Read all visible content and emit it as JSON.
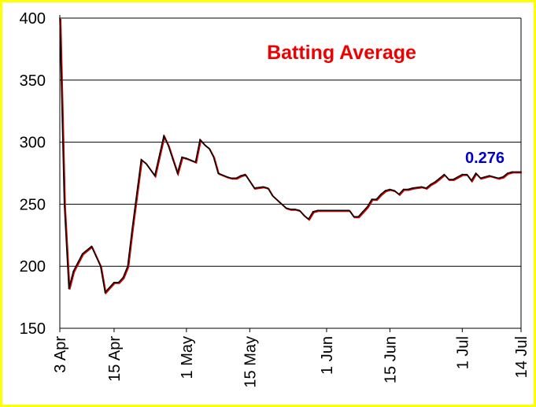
{
  "chart_data": {
    "type": "line",
    "title": "Batting Average",
    "xlabel": "",
    "ylabel": "",
    "ylim": [
      150,
      400
    ],
    "y_ticks": [
      150,
      200,
      250,
      300,
      350,
      400
    ],
    "grid": true,
    "x_range": [
      "2024-04-03",
      "2024-07-14"
    ],
    "x_ticks": [
      {
        "date": "2024-04-03",
        "label": "3 Apr"
      },
      {
        "date": "2024-04-15",
        "label": "15 Apr"
      },
      {
        "date": "2024-05-01",
        "label": "1 May"
      },
      {
        "date": "2024-05-15",
        "label": "15 May"
      },
      {
        "date": "2024-06-01",
        "label": "1 Jun"
      },
      {
        "date": "2024-06-15",
        "label": "15 Jun"
      },
      {
        "date": "2024-07-01",
        "label": "1 Jul"
      },
      {
        "date": "2024-07-14",
        "label": "14 Jul"
      }
    ],
    "series": [
      {
        "color": "#000000",
        "shadow_color": "#cc0000",
        "points": [
          [
            "2024-04-03",
            400
          ],
          [
            "2024-04-04",
            250
          ],
          [
            "2024-04-05",
            182
          ],
          [
            "2024-04-06",
            196
          ],
          [
            "2024-04-08",
            210
          ],
          [
            "2024-04-10",
            216
          ],
          [
            "2024-04-12",
            200
          ],
          [
            "2024-04-13",
            179
          ],
          [
            "2024-04-14",
            183
          ],
          [
            "2024-04-15",
            187
          ],
          [
            "2024-04-16",
            187
          ],
          [
            "2024-04-17",
            191
          ],
          [
            "2024-04-18",
            200
          ],
          [
            "2024-04-19",
            230
          ],
          [
            "2024-04-21",
            286
          ],
          [
            "2024-04-22",
            283
          ],
          [
            "2024-04-24",
            273
          ],
          [
            "2024-04-26",
            305
          ],
          [
            "2024-04-27",
            297
          ],
          [
            "2024-04-28",
            286
          ],
          [
            "2024-04-29",
            275
          ],
          [
            "2024-04-30",
            288
          ],
          [
            "2024-05-01",
            287
          ],
          [
            "2024-05-03",
            284
          ],
          [
            "2024-05-04",
            302
          ],
          [
            "2024-05-05",
            298
          ],
          [
            "2024-05-06",
            295
          ],
          [
            "2024-05-07",
            288
          ],
          [
            "2024-05-08",
            275
          ],
          [
            "2024-05-10",
            272
          ],
          [
            "2024-05-11",
            271
          ],
          [
            "2024-05-12",
            271
          ],
          [
            "2024-05-13",
            273
          ],
          [
            "2024-05-14",
            274
          ],
          [
            "2024-05-16",
            263
          ],
          [
            "2024-05-18",
            264
          ],
          [
            "2024-05-19",
            263
          ],
          [
            "2024-05-20",
            257
          ],
          [
            "2024-05-23",
            247
          ],
          [
            "2024-05-24",
            246
          ],
          [
            "2024-05-25",
            246
          ],
          [
            "2024-05-26",
            245
          ],
          [
            "2024-05-27",
            241
          ],
          [
            "2024-05-28",
            238
          ],
          [
            "2024-05-29",
            244
          ],
          [
            "2024-05-30",
            245
          ],
          [
            "2024-06-02",
            245
          ],
          [
            "2024-06-06",
            245
          ],
          [
            "2024-06-07",
            240
          ],
          [
            "2024-06-08",
            240
          ],
          [
            "2024-06-09",
            244
          ],
          [
            "2024-06-10",
            248
          ],
          [
            "2024-06-11",
            254
          ],
          [
            "2024-06-12",
            254
          ],
          [
            "2024-06-13",
            258
          ],
          [
            "2024-06-14",
            261
          ],
          [
            "2024-06-15",
            262
          ],
          [
            "2024-06-16",
            261
          ],
          [
            "2024-06-17",
            258
          ],
          [
            "2024-06-18",
            262
          ],
          [
            "2024-06-19",
            262
          ],
          [
            "2024-06-20",
            263
          ],
          [
            "2024-06-22",
            264
          ],
          [
            "2024-06-23",
            263
          ],
          [
            "2024-06-24",
            266
          ],
          [
            "2024-06-25",
            268
          ],
          [
            "2024-06-26",
            271
          ],
          [
            "2024-06-27",
            274
          ],
          [
            "2024-06-28",
            270
          ],
          [
            "2024-06-29",
            270
          ],
          [
            "2024-06-30",
            272
          ],
          [
            "2024-07-01",
            274
          ],
          [
            "2024-07-02",
            274
          ],
          [
            "2024-07-03",
            269
          ],
          [
            "2024-07-04",
            275
          ],
          [
            "2024-07-05",
            271
          ],
          [
            "2024-07-06",
            272
          ],
          [
            "2024-07-07",
            273
          ],
          [
            "2024-07-08",
            272
          ],
          [
            "2024-07-09",
            271
          ],
          [
            "2024-07-10",
            272
          ],
          [
            "2024-07-11",
            275
          ],
          [
            "2024-07-12",
            276
          ],
          [
            "2024-07-14",
            276
          ]
        ]
      }
    ],
    "annotations": [
      {
        "text": "0.276",
        "date": "2024-07-06",
        "y": 282,
        "color": "#0000cc"
      }
    ],
    "title_color": "#ee0000",
    "frame_color": "#ffff00",
    "grid_color": "#000000"
  }
}
